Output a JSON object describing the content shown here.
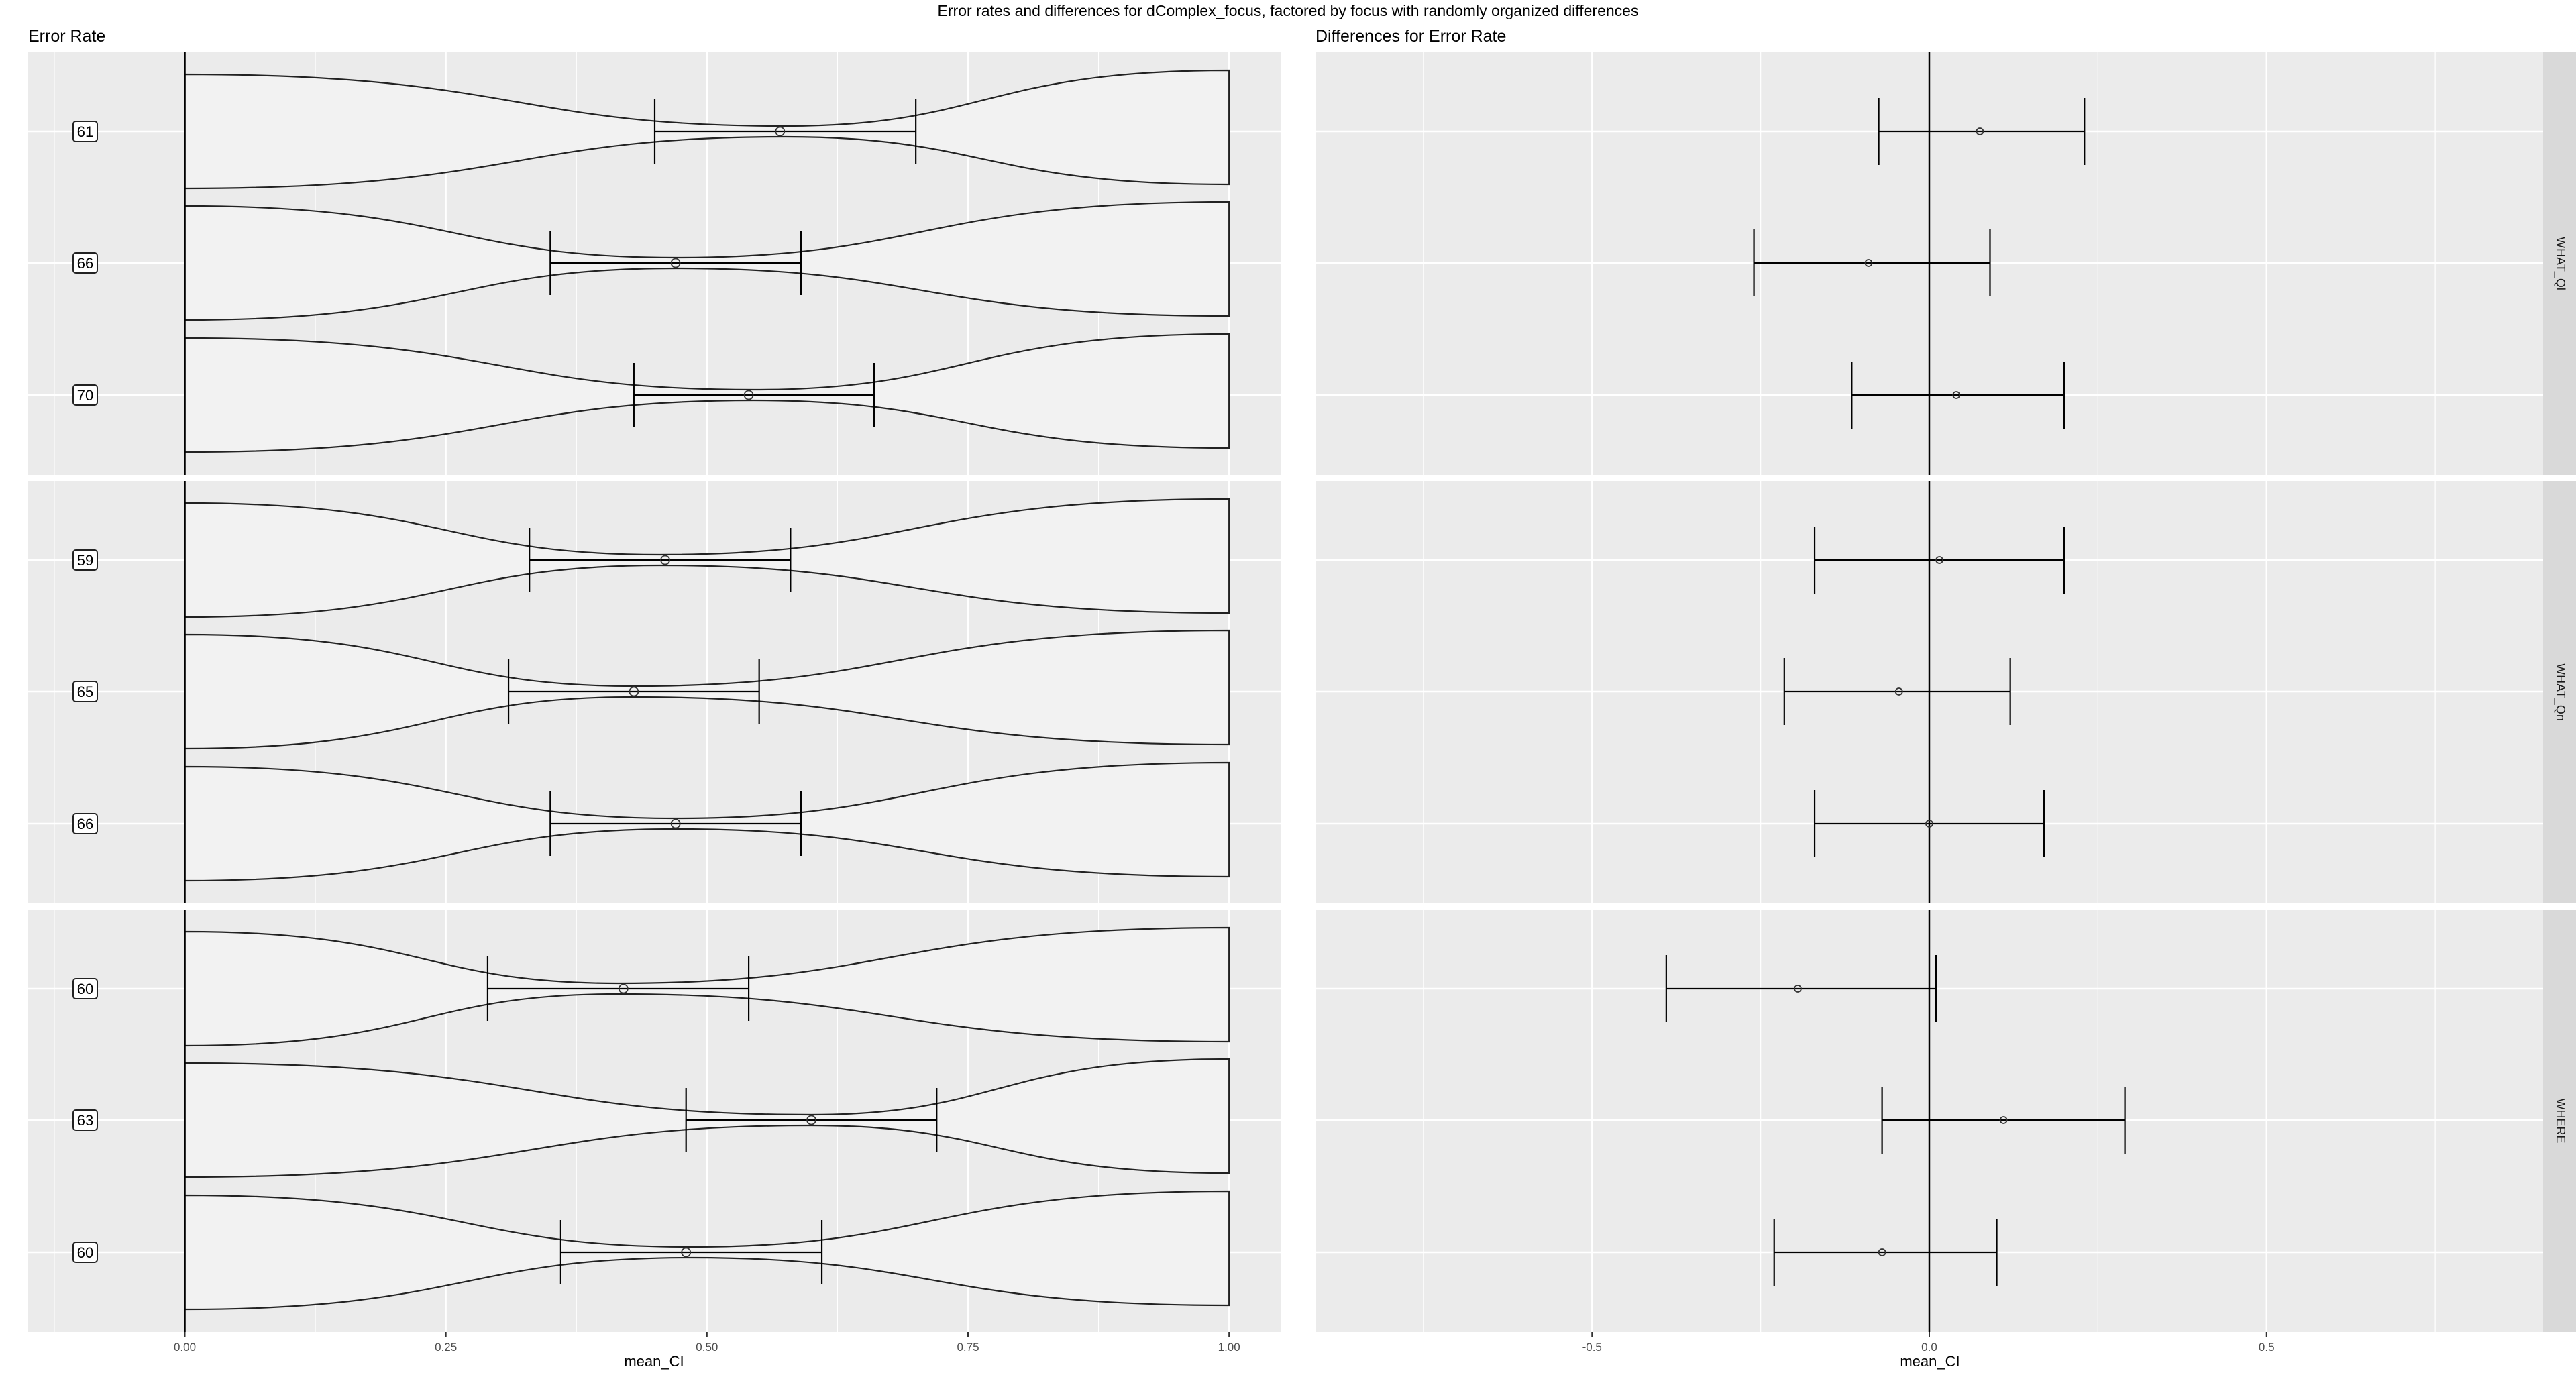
{
  "chart_data": {
    "type": "error-bar",
    "title": "Error rates and differences for dComplex_focus, factored by focus with randomly organized differences",
    "facets": [
      {
        "strip": "WHAT_Ql",
        "rows": [
          {
            "label": "61",
            "mean": 0.57,
            "ci": [
              0.45,
              0.7
            ],
            "diff": 0.075,
            "diff_ci": [
              -0.075,
              0.23
            ]
          },
          {
            "label": "66",
            "mean": 0.47,
            "ci": [
              0.35,
              0.59
            ],
            "diff": -0.09,
            "diff_ci": [
              -0.26,
              0.09
            ]
          },
          {
            "label": "70",
            "mean": 0.54,
            "ci": [
              0.43,
              0.66
            ],
            "diff": 0.04,
            "diff_ci": [
              -0.115,
              0.2
            ]
          }
        ]
      },
      {
        "strip": "WHAT_Qn",
        "rows": [
          {
            "label": "59",
            "mean": 0.46,
            "ci": [
              0.33,
              0.58
            ],
            "diff": 0.015,
            "diff_ci": [
              -0.17,
              0.2
            ]
          },
          {
            "label": "65",
            "mean": 0.43,
            "ci": [
              0.31,
              0.55
            ],
            "diff": -0.045,
            "diff_ci": [
              -0.215,
              0.12
            ]
          },
          {
            "label": "66",
            "mean": 0.47,
            "ci": [
              0.35,
              0.59
            ],
            "diff": 0.0,
            "diff_ci": [
              -0.17,
              0.17
            ]
          }
        ]
      },
      {
        "strip": "WHERE",
        "rows": [
          {
            "label": "60",
            "mean": 0.42,
            "ci": [
              0.29,
              0.54
            ],
            "diff": -0.195,
            "diff_ci": [
              -0.39,
              0.01
            ]
          },
          {
            "label": "63",
            "mean": 0.6,
            "ci": [
              0.48,
              0.72
            ],
            "diff": 0.11,
            "diff_ci": [
              -0.07,
              0.29
            ]
          },
          {
            "label": "60",
            "mean": 0.48,
            "ci": [
              0.36,
              0.61
            ],
            "diff": -0.07,
            "diff_ci": [
              -0.23,
              0.1
            ]
          }
        ]
      }
    ],
    "left_panel": {
      "title": "Error Rate",
      "xlabel": "mean_CI",
      "xlim": [
        -0.15,
        1.05
      ],
      "ticks": [
        0.0,
        0.25,
        0.5,
        0.75,
        1.0
      ],
      "tick_labels": [
        "0.00",
        "0.25",
        "0.50",
        "0.75",
        "1.00"
      ],
      "grid": true
    },
    "right_panel": {
      "title": "Differences for Error Rate",
      "xlabel": "mean_CI",
      "xlim": [
        -0.91,
        0.91
      ],
      "ticks": [
        -0.5,
        0.0,
        0.5
      ],
      "tick_labels": [
        "-0.5",
        "0.0",
        "0.5"
      ],
      "grid": true
    },
    "colors": {
      "panel_bg": "#ebebeb",
      "grid": "#ffffff",
      "strip_bg": "#d9d9d9",
      "shape_fill": "#f2f2f2",
      "line": "#000000"
    }
  }
}
